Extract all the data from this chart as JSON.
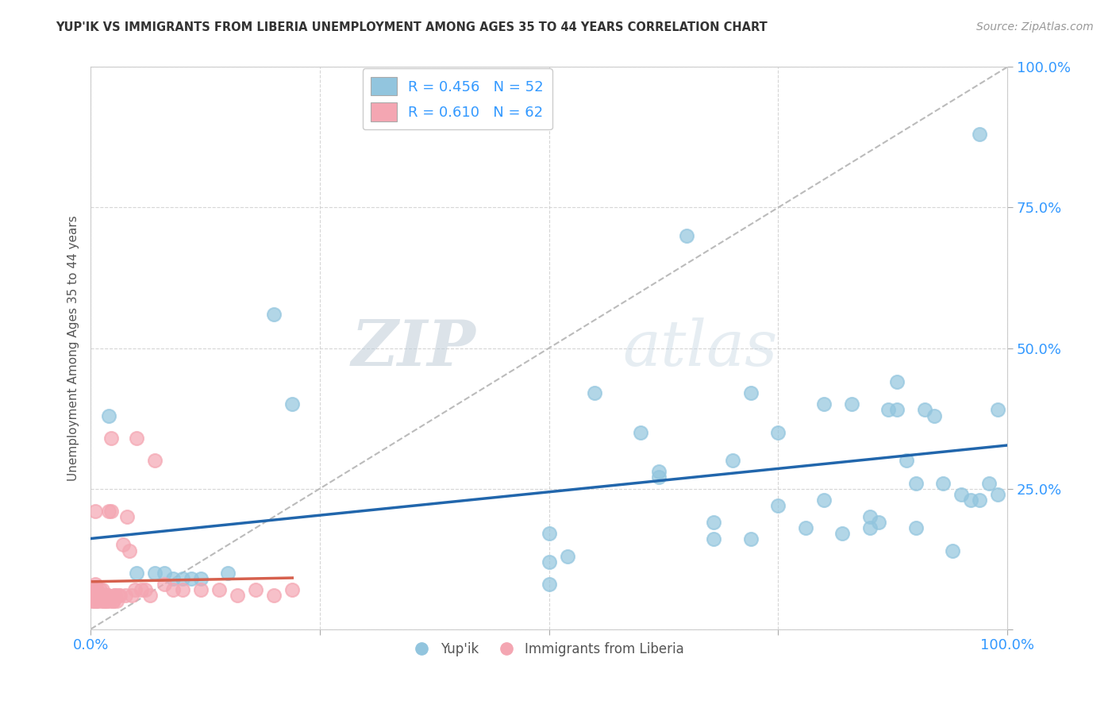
{
  "title": "YUP'IK VS IMMIGRANTS FROM LIBERIA UNEMPLOYMENT AMONG AGES 35 TO 44 YEARS CORRELATION CHART",
  "source": "Source: ZipAtlas.com",
  "ylabel": "Unemployment Among Ages 35 to 44 years",
  "xlabel": "",
  "xlim": [
    0,
    1.0
  ],
  "ylim": [
    0,
    1.0
  ],
  "xticks": [
    0.0,
    0.25,
    0.5,
    0.75,
    1.0
  ],
  "yticks": [
    0.0,
    0.25,
    0.5,
    0.75,
    1.0
  ],
  "xticklabels": [
    "0.0%",
    "",
    "",
    "",
    "100.0%"
  ],
  "yticklabels": [
    "",
    "25.0%",
    "50.0%",
    "75.0%",
    "100.0%"
  ],
  "legend_r_blue": "R = 0.456",
  "legend_n_blue": "N = 52",
  "legend_r_pink": "R = 0.610",
  "legend_n_pink": "N = 62",
  "legend_label_blue": "Yup'ik",
  "legend_label_pink": "Immigrants from Liberia",
  "blue_color": "#92C5DE",
  "pink_color": "#F4A6B2",
  "blue_line_color": "#2166AC",
  "pink_line_color": "#D6604D",
  "diagonal_color": "#BBBBBB",
  "watermark_zip": "ZIP",
  "watermark_atlas": "atlas",
  "blue_scatter_x": [
    0.02,
    0.05,
    0.07,
    0.08,
    0.09,
    0.1,
    0.11,
    0.12,
    0.15,
    0.2,
    0.22,
    0.5,
    0.52,
    0.55,
    0.6,
    0.62,
    0.65,
    0.68,
    0.7,
    0.72,
    0.75,
    0.78,
    0.8,
    0.82,
    0.83,
    0.85,
    0.86,
    0.87,
    0.88,
    0.88,
    0.89,
    0.9,
    0.9,
    0.91,
    0.92,
    0.93,
    0.94,
    0.95,
    0.96,
    0.97,
    0.98,
    0.99,
    0.62,
    0.68,
    0.72,
    0.8,
    0.85,
    0.5,
    0.5,
    0.75,
    0.97,
    0.99
  ],
  "blue_scatter_y": [
    0.38,
    0.1,
    0.1,
    0.1,
    0.09,
    0.09,
    0.09,
    0.09,
    0.1,
    0.56,
    0.4,
    0.17,
    0.13,
    0.42,
    0.35,
    0.27,
    0.7,
    0.16,
    0.3,
    0.42,
    0.22,
    0.18,
    0.4,
    0.17,
    0.4,
    0.18,
    0.19,
    0.39,
    0.44,
    0.39,
    0.3,
    0.18,
    0.26,
    0.39,
    0.38,
    0.26,
    0.14,
    0.24,
    0.23,
    0.88,
    0.26,
    0.24,
    0.28,
    0.19,
    0.16,
    0.23,
    0.2,
    0.12,
    0.08,
    0.35,
    0.23,
    0.39
  ],
  "pink_scatter_x": [
    0.002,
    0.003,
    0.004,
    0.005,
    0.005,
    0.006,
    0.006,
    0.007,
    0.008,
    0.009,
    0.01,
    0.011,
    0.012,
    0.013,
    0.014,
    0.015,
    0.016,
    0.017,
    0.018,
    0.019,
    0.02,
    0.021,
    0.022,
    0.024,
    0.025,
    0.026,
    0.027,
    0.028,
    0.03,
    0.032,
    0.035,
    0.038,
    0.04,
    0.042,
    0.045,
    0.048,
    0.05,
    0.055,
    0.06,
    0.065,
    0.07,
    0.08,
    0.09,
    0.1,
    0.12,
    0.14,
    0.16,
    0.18,
    0.2,
    0.22,
    0.002,
    0.003,
    0.004,
    0.005,
    0.006,
    0.007,
    0.008,
    0.01,
    0.012,
    0.015,
    0.018,
    0.022
  ],
  "pink_scatter_y": [
    0.06,
    0.07,
    0.06,
    0.08,
    0.06,
    0.07,
    0.06,
    0.07,
    0.06,
    0.06,
    0.07,
    0.06,
    0.06,
    0.07,
    0.05,
    0.06,
    0.05,
    0.06,
    0.05,
    0.06,
    0.21,
    0.05,
    0.21,
    0.05,
    0.05,
    0.06,
    0.06,
    0.05,
    0.06,
    0.06,
    0.15,
    0.06,
    0.2,
    0.14,
    0.06,
    0.07,
    0.34,
    0.07,
    0.07,
    0.06,
    0.3,
    0.08,
    0.07,
    0.07,
    0.07,
    0.07,
    0.06,
    0.07,
    0.06,
    0.07,
    0.05,
    0.05,
    0.05,
    0.21,
    0.05,
    0.05,
    0.05,
    0.06,
    0.05,
    0.05,
    0.06,
    0.34
  ]
}
